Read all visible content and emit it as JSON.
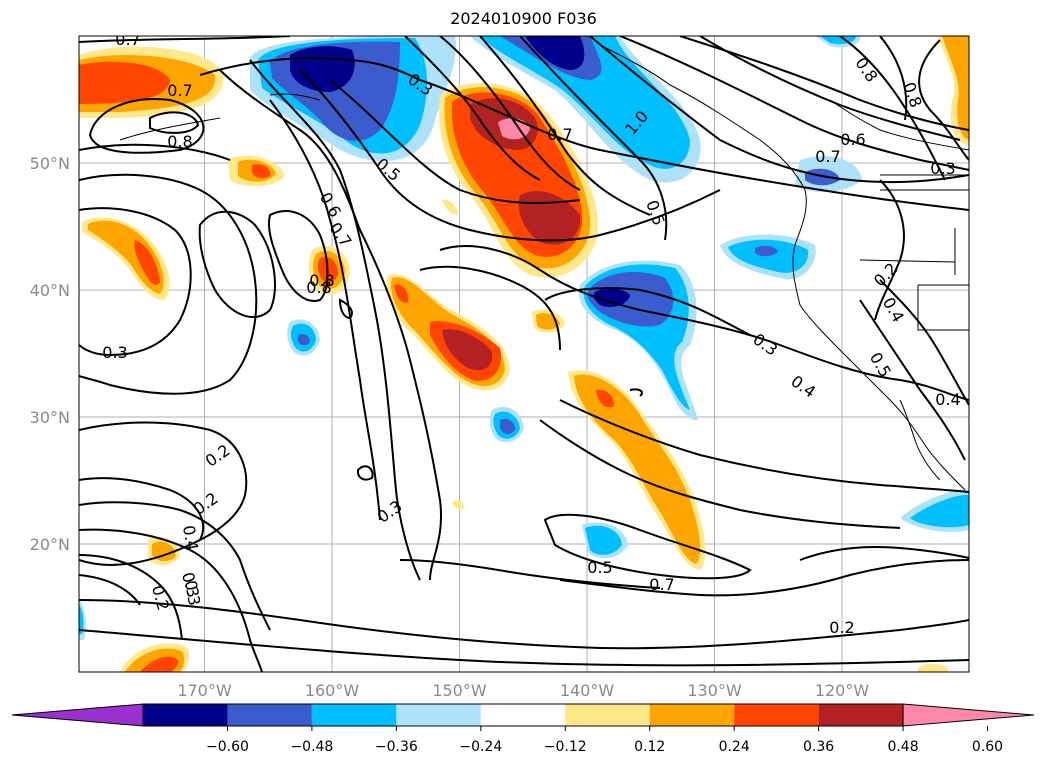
{
  "title": "2024010900 F036",
  "map": {
    "lat_labels": [
      "50°N",
      "40°N",
      "30°N",
      "20°N"
    ],
    "lat_values": [
      50,
      40,
      30,
      20
    ],
    "lon_labels": [
      "170°W",
      "160°W",
      "150°W",
      "140°W",
      "130°W",
      "120°W"
    ],
    "lon_values": [
      -170,
      -160,
      -150,
      -140,
      -130,
      -120
    ],
    "tick_color": "#8a8a8a",
    "grid_color": "#b0b0b0",
    "contour_labels": [
      "0.7",
      "0.7",
      "0.8",
      "0.8",
      "0.3",
      "0.2",
      "0.6",
      "0.7",
      "0.8",
      "0.3",
      "0.2",
      "0.3",
      "0.4",
      "0.2",
      "0.3",
      "0.3",
      "0.5",
      "0.4",
      "0.2",
      "0.5",
      "0.7",
      "0.7",
      "0.5",
      "1.0",
      "0.8",
      "0.8",
      "0.6",
      "0.7",
      "0.3",
      "0.2",
      "0.4",
      "0.3",
      "0.5",
      "0.4"
    ]
  },
  "colorbar": {
    "colors": [
      "#9b30d0",
      "#00008b",
      "#3a5ccc",
      "#00bfff",
      "#aee2fa",
      "#ffffff",
      "#ffe88a",
      "#ffa500",
      "#ff4500",
      "#b22222",
      "#ff88aa"
    ],
    "ticks": [
      "−0.60",
      "−0.48",
      "−0.36",
      "−0.24",
      "−0.12",
      "0.12",
      "0.24",
      "0.36",
      "0.48",
      "0.60"
    ]
  }
}
